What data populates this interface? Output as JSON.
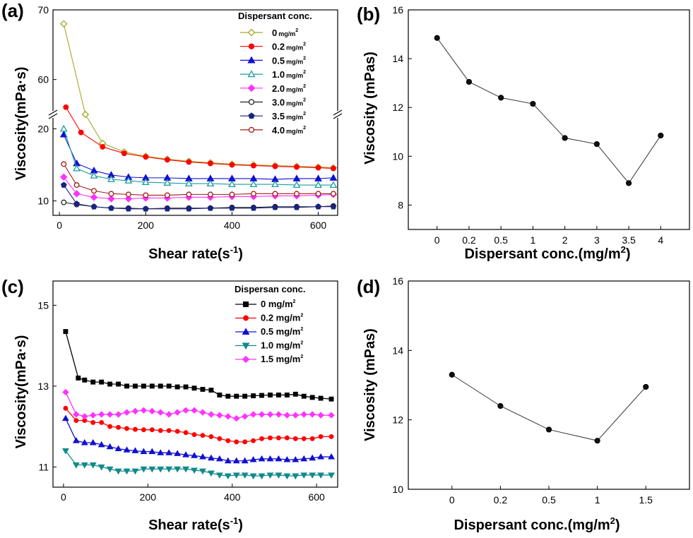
{
  "chart_data": [
    {
      "panel": "(a)",
      "type": "line",
      "xlabel": "Shear rate(s",
      "xlabel_sup": "-1",
      "xlabel_end": ")",
      "ylabel": "Viscosity(mPa·s)",
      "xlim": [
        -15,
        645
      ],
      "ylim_lower": [
        8,
        22
      ],
      "ylim_upper": [
        55,
        70
      ],
      "axis_break": true,
      "xticks": [
        0,
        200,
        400,
        600
      ],
      "yticks_lower": [
        10,
        20
      ],
      "yticks_upper": [
        60,
        70
      ],
      "legend_title": "Dispersant conc.",
      "legend_position": "top-right",
      "series": [
        {
          "name": "0",
          "unit": "mg/m",
          "color": "#a9a628",
          "marker": "diamond-open",
          "x": [
            10,
            60,
            100,
            150,
            200,
            250,
            300,
            350,
            400,
            450,
            500,
            550,
            600,
            635
          ],
          "y": [
            68,
            22,
            18,
            16.8,
            16.2,
            15.8,
            15.5,
            15.3,
            15.1,
            15.0,
            14.9,
            14.8,
            14.7,
            14.6
          ]
        },
        {
          "name": "0.2",
          "unit": "mg/m",
          "color": "#ff0000",
          "marker": "circle",
          "x": [
            15,
            50,
            100,
            150,
            200,
            250,
            300,
            350,
            400,
            450,
            500,
            550,
            600,
            635
          ],
          "y": [
            23,
            19.5,
            17.5,
            16.6,
            16.1,
            15.7,
            15.4,
            15.2,
            15.0,
            14.9,
            14.8,
            14.7,
            14.6,
            14.5
          ]
        },
        {
          "name": "0.5",
          "unit": "mg/m",
          "color": "#1010d0",
          "marker": "triangle",
          "x": [
            10,
            40,
            80,
            120,
            160,
            200,
            250,
            300,
            350,
            400,
            450,
            500,
            550,
            600,
            635
          ],
          "y": [
            19.2,
            15.2,
            14.2,
            13.6,
            13.3,
            13.2,
            13.2,
            13.1,
            13.1,
            13.1,
            13.1,
            13.0,
            13.1,
            13.1,
            13.2
          ]
        },
        {
          "name": "1.0",
          "unit": "mg/m",
          "color": "#1c9c9c",
          "marker": "triangle-open",
          "x": [
            10,
            40,
            80,
            120,
            160,
            200,
            250,
            300,
            350,
            400,
            450,
            500,
            550,
            600,
            635
          ],
          "y": [
            20,
            14.5,
            13.5,
            13.0,
            12.8,
            12.6,
            12.5,
            12.4,
            12.4,
            12.3,
            12.3,
            12.3,
            12.2,
            12.2,
            12.2
          ]
        },
        {
          "name": "2.0",
          "unit": "mg/m",
          "color": "#ff33ff",
          "marker": "diamond",
          "x": [
            10,
            40,
            80,
            120,
            160,
            200,
            250,
            300,
            350,
            400,
            450,
            500,
            550,
            600,
            635
          ],
          "y": [
            13.3,
            11.0,
            10.5,
            10.3,
            10.3,
            10.4,
            10.4,
            10.5,
            10.5,
            10.6,
            10.6,
            10.7,
            10.7,
            10.8,
            10.9
          ]
        },
        {
          "name": "3.0",
          "unit": "mg/m",
          "color": "#222222",
          "marker": "circle-open",
          "x": [
            10,
            40,
            80,
            120,
            160,
            200,
            250,
            300,
            350,
            400,
            450,
            500,
            550,
            600,
            635
          ],
          "y": [
            9.8,
            9.5,
            9.2,
            9.0,
            9.0,
            8.9,
            9.0,
            9.0,
            9.0,
            9.1,
            9.1,
            9.2,
            9.2,
            9.2,
            9.3
          ]
        },
        {
          "name": "3.5",
          "unit": "mg/m",
          "color": "#1a237e",
          "marker": "pentagon",
          "x": [
            10,
            40,
            80,
            120,
            160,
            200,
            250,
            300,
            350,
            400,
            450,
            500,
            550,
            600,
            635
          ],
          "y": [
            12.2,
            9.6,
            9.2,
            9.0,
            8.9,
            8.9,
            8.9,
            8.9,
            9.0,
            9.0,
            9.0,
            9.1,
            9.1,
            9.2,
            9.2
          ]
        },
        {
          "name": "4.0",
          "unit": "mg/m",
          "color": "#a01a1a",
          "marker": "circle-open",
          "x": [
            10,
            40,
            80,
            120,
            160,
            200,
            250,
            300,
            350,
            400,
            450,
            500,
            550,
            600,
            635
          ],
          "y": [
            15.1,
            12.2,
            11.4,
            11.0,
            10.9,
            10.8,
            10.8,
            10.9,
            10.9,
            10.9,
            11.0,
            11.0,
            11.0,
            11.0,
            11.0
          ]
        }
      ]
    },
    {
      "panel": "(b)",
      "type": "line",
      "xlabel": "Dispersant conc.(mg/m",
      "xlabel_sup": "2",
      "xlabel_end": ")",
      "ylabel": "Viscosity (mPas)",
      "categories": [
        "0",
        "0.2",
        "0.5",
        "1",
        "2",
        "3",
        "3.5",
        "4"
      ],
      "values": [
        14.85,
        13.05,
        12.4,
        12.15,
        10.75,
        10.5,
        8.9,
        10.85
      ],
      "ylim": [
        7,
        16
      ],
      "yticks": [
        8,
        10,
        12,
        14,
        16
      ]
    },
    {
      "panel": "(c)",
      "type": "line",
      "xlabel": "Shear rate(s",
      "xlabel_sup": "-1",
      "xlabel_end": ")",
      "ylabel": "Viscosity(mPa·s)",
      "xlim": [
        -25,
        650
      ],
      "ylim": [
        10.5,
        15.6
      ],
      "xticks": [
        0,
        200,
        400,
        600
      ],
      "yticks": [
        11,
        13,
        15
      ],
      "legend_title": "Dispersan conc.",
      "legend_position": "top-right",
      "series": [
        {
          "name": "0 mg/m",
          "color": "#000000",
          "marker": "square",
          "x": [
            5,
            35,
            50,
            70,
            90,
            110,
            130,
            150,
            170,
            190,
            210,
            230,
            250,
            270,
            290,
            310,
            330,
            350,
            370,
            390,
            410,
            430,
            450,
            470,
            490,
            510,
            530,
            550,
            570,
            590,
            610,
            635
          ],
          "y": [
            14.35,
            13.2,
            13.15,
            13.1,
            13.1,
            13.05,
            13.05,
            13.0,
            13.0,
            13.0,
            13.0,
            13.0,
            13.0,
            12.98,
            12.98,
            12.95,
            12.92,
            12.9,
            12.78,
            12.75,
            12.75,
            12.75,
            12.76,
            12.77,
            12.78,
            12.78,
            12.78,
            12.8,
            12.75,
            12.72,
            12.7,
            12.68
          ]
        },
        {
          "name": "0.2 mg/m",
          "color": "#ff0000",
          "marker": "circle",
          "x": [
            5,
            30,
            50,
            70,
            90,
            110,
            130,
            150,
            170,
            190,
            210,
            230,
            250,
            270,
            290,
            310,
            330,
            350,
            370,
            390,
            410,
            430,
            450,
            470,
            490,
            510,
            530,
            550,
            570,
            590,
            610,
            635
          ],
          "y": [
            12.45,
            12.15,
            12.15,
            12.1,
            12.1,
            12.0,
            11.98,
            11.95,
            11.93,
            11.92,
            11.92,
            11.9,
            11.9,
            11.88,
            11.85,
            11.8,
            11.78,
            11.75,
            11.7,
            11.65,
            11.62,
            11.62,
            11.65,
            11.7,
            11.72,
            11.72,
            11.72,
            11.7,
            11.7,
            11.7,
            11.75,
            11.75
          ]
        },
        {
          "name": "0.5 mg/m",
          "color": "#1010d0",
          "marker": "triangle",
          "x": [
            5,
            30,
            50,
            70,
            90,
            110,
            130,
            150,
            170,
            190,
            210,
            230,
            250,
            270,
            290,
            310,
            330,
            350,
            370,
            390,
            410,
            430,
            450,
            470,
            490,
            510,
            530,
            550,
            570,
            590,
            610,
            635
          ],
          "y": [
            12.2,
            11.65,
            11.6,
            11.6,
            11.55,
            11.5,
            11.45,
            11.42,
            11.4,
            11.38,
            11.38,
            11.35,
            11.35,
            11.33,
            11.3,
            11.28,
            11.25,
            11.22,
            11.2,
            11.15,
            11.15,
            11.15,
            11.18,
            11.2,
            11.2,
            11.2,
            11.18,
            11.18,
            11.2,
            11.22,
            11.25,
            11.25
          ]
        },
        {
          "name": "1.0 mg/m",
          "color": "#118a8a",
          "marker": "triangle-down",
          "x": [
            5,
            30,
            50,
            70,
            90,
            110,
            130,
            150,
            170,
            190,
            210,
            230,
            250,
            270,
            290,
            310,
            330,
            350,
            370,
            390,
            410,
            430,
            450,
            470,
            490,
            510,
            530,
            550,
            570,
            590,
            610,
            635
          ],
          "y": [
            11.4,
            11.05,
            11.05,
            11.05,
            11.0,
            10.95,
            10.9,
            10.9,
            10.9,
            10.95,
            10.95,
            10.95,
            10.95,
            10.95,
            10.95,
            10.92,
            10.9,
            10.85,
            10.8,
            10.78,
            10.8,
            10.8,
            10.78,
            10.78,
            10.8,
            10.8,
            10.78,
            10.78,
            10.8,
            10.8,
            10.8,
            10.8
          ]
        },
        {
          "name": "1.5 mg/m",
          "color": "#ff33ff",
          "marker": "diamond",
          "x": [
            5,
            30,
            50,
            70,
            90,
            110,
            130,
            150,
            170,
            190,
            210,
            230,
            250,
            270,
            290,
            310,
            330,
            350,
            370,
            390,
            410,
            430,
            450,
            470,
            490,
            510,
            530,
            550,
            570,
            590,
            610,
            635
          ],
          "y": [
            12.85,
            12.3,
            12.25,
            12.28,
            12.3,
            12.3,
            12.3,
            12.35,
            12.38,
            12.4,
            12.38,
            12.35,
            12.3,
            12.35,
            12.4,
            12.4,
            12.35,
            12.3,
            12.28,
            12.25,
            12.2,
            12.25,
            12.3,
            12.3,
            12.3,
            12.3,
            12.28,
            12.28,
            12.3,
            12.3,
            12.28,
            12.28
          ]
        }
      ]
    },
    {
      "panel": "(d)",
      "type": "line",
      "xlabel": "Dispersant conc.(mg/m",
      "xlabel_sup": "2",
      "xlabel_end": ")",
      "ylabel": "Viscosity (mPas)",
      "categories": [
        "0",
        "0.2",
        "0.5",
        "1",
        "1.5"
      ],
      "values": [
        13.3,
        12.4,
        11.72,
        11.4,
        12.95
      ],
      "ylim": [
        10,
        16
      ],
      "yticks": [
        10,
        12,
        14,
        16
      ]
    }
  ]
}
